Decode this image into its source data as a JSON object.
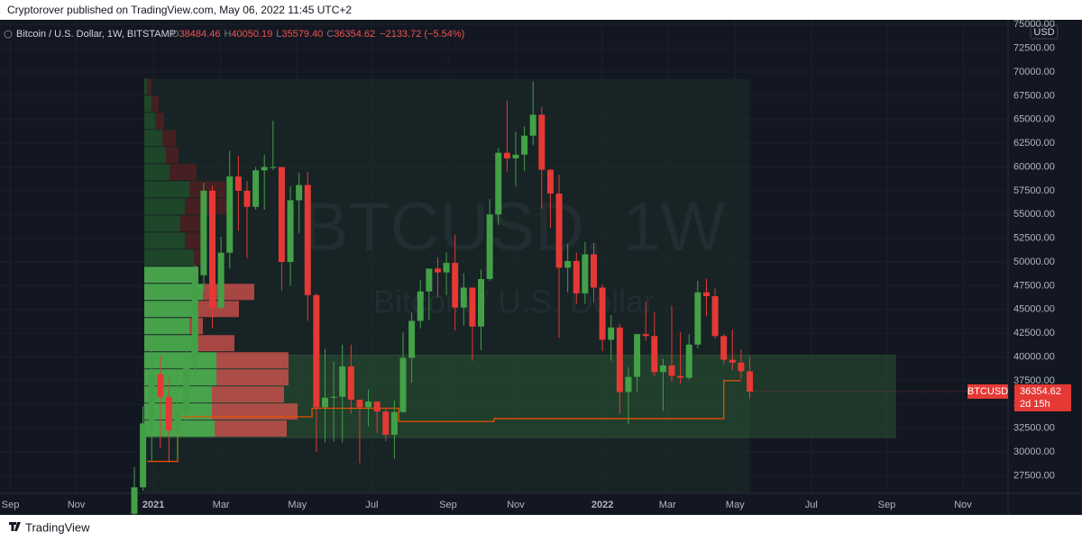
{
  "header": {
    "byline": "Cryptorover published on TradingView.com, May 06, 2022 11:45 UTC+2"
  },
  "footer": {
    "brand": "TradingView"
  },
  "chart_data": {
    "type": "candlestick",
    "title": "Bitcoin / U.S. Dollar, 1W, BITSTAMP",
    "ohlc_legend": [
      {
        "label": "O",
        "value": "38484.46"
      },
      {
        "label": "H",
        "value": "40050.19"
      },
      {
        "label": "L",
        "value": "35579.40"
      },
      {
        "label": "C",
        "value": "36354.62"
      }
    ],
    "change": "−2133.72 (−5.54%)",
    "watermark": [
      "BTCUSD, 1W",
      "Bitcoin / U.S. Dollar"
    ],
    "currency": "USD",
    "last_price": {
      "symbol": "BTCUSD",
      "value": 36354.62,
      "countdown": "2d 15h"
    },
    "up_color": "#43a047",
    "down_color": "#e53935",
    "x": [
      0,
      1,
      2,
      3,
      4,
      5,
      6,
      7,
      8,
      9,
      10,
      11,
      12,
      13,
      14,
      15,
      16,
      17,
      18,
      19,
      20,
      21,
      22,
      23,
      24,
      25,
      26,
      27,
      28,
      29,
      30,
      31,
      32,
      33,
      34,
      35,
      36,
      37,
      38,
      39,
      40,
      41,
      42,
      43,
      44,
      45,
      46,
      47,
      48,
      49,
      50,
      51,
      52,
      53,
      54,
      55,
      56,
      57,
      58,
      59,
      60,
      61,
      62,
      63,
      64,
      65,
      66,
      67,
      68,
      69,
      70,
      71
    ],
    "open": [
      23480,
      26270,
      33000,
      38180,
      35800,
      32260,
      34300,
      38900,
      48600,
      57500,
      45200,
      50970,
      59000,
      57500,
      55800,
      59650,
      60000,
      60000,
      50000,
      56500,
      58100,
      46500,
      34700,
      35700,
      35800,
      39000,
      35500,
      34700,
      35300,
      34250,
      31800,
      34200,
      39900,
      43800,
      46900,
      49300,
      48900,
      49900,
      45200,
      47300,
      43200,
      48200,
      55000,
      61500,
      60900,
      61300,
      63300,
      65500,
      59700,
      57200,
      49400,
      50100,
      46700,
      50800,
      47300,
      41800,
      43100,
      36300,
      37900,
      42400,
      42200,
      38400,
      39100,
      38000,
      37800,
      41300,
      46800,
      46400,
      42200,
      39700,
      39400,
      38484.46
    ],
    "high": [
      28400,
      34800,
      41950,
      40100,
      37850,
      38600,
      40950,
      49700,
      58350,
      58000,
      52650,
      61700,
      61200,
      58500,
      60000,
      61300,
      64850,
      60000,
      58000,
      59400,
      59500,
      46700,
      40850,
      39500,
      41300,
      41300,
      35500,
      36600,
      35300,
      34650,
      35400,
      42600,
      44700,
      48100,
      49100,
      50500,
      51000,
      52900,
      48800,
      47300,
      49200,
      56600,
      62000,
      67000,
      63700,
      64300,
      69000,
      66300,
      59800,
      59200,
      51900,
      51000,
      52100,
      52000,
      47600,
      44400,
      43500,
      38900,
      42200,
      45800,
      44700,
      39800,
      45400,
      42600,
      42400,
      48000,
      48200,
      47200,
      42400,
      42900,
      40800,
      40050.19
    ],
    "low": [
      22350,
      25900,
      29000,
      30400,
      28850,
      29200,
      32300,
      37400,
      47000,
      43000,
      44950,
      49300,
      53300,
      50400,
      55500,
      55500,
      59700,
      47000,
      47500,
      53000,
      43800,
      30000,
      31000,
      31100,
      31000,
      34000,
      28800,
      32700,
      32000,
      31100,
      29300,
      34100,
      37300,
      43000,
      43900,
      46300,
      46500,
      42800,
      43300,
      39600,
      40700,
      48000,
      53900,
      59500,
      58000,
      59600,
      62300,
      55600,
      53600,
      42000,
      46800,
      45600,
      45600,
      45700,
      40600,
      39600,
      34000,
      32900,
      36300,
      41700,
      38000,
      34300,
      37400,
      37200,
      37600,
      40900,
      44300,
      41900,
      39200,
      38600,
      37700,
      35579.4
    ],
    "close": [
      26270,
      33000,
      38180,
      35800,
      32260,
      34300,
      38900,
      48600,
      57500,
      45200,
      50970,
      59000,
      57500,
      55800,
      59650,
      60000,
      60000,
      50000,
      56500,
      58100,
      46500,
      34700,
      35700,
      35800,
      39000,
      35500,
      34700,
      35300,
      34250,
      31800,
      34200,
      39900,
      43800,
      46900,
      49300,
      48900,
      49900,
      45200,
      47300,
      43200,
      48200,
      55000,
      61500,
      60900,
      61300,
      63300,
      65500,
      59700,
      57200,
      49400,
      50100,
      46700,
      50800,
      47300,
      41800,
      43100,
      36300,
      37900,
      42400,
      42200,
      38400,
      39100,
      38000,
      37800,
      41300,
      46800,
      46400,
      42200,
      39700,
      39400,
      38500,
      36354.62
    ],
    "xlim": [
      -15.5,
      100.8
    ],
    "xticks": [
      {
        "value": -14.3,
        "label": "Sep"
      },
      {
        "value": -6.7,
        "label": "Nov"
      },
      {
        "value": 2.2,
        "label": "2021"
      },
      {
        "value": 10,
        "label": "Mar"
      },
      {
        "value": 18.8,
        "label": "May"
      },
      {
        "value": 27.4,
        "label": "Jul"
      },
      {
        "value": 36.2,
        "label": "Sep"
      },
      {
        "value": 44,
        "label": "Nov"
      },
      {
        "value": 54,
        "label": "2022"
      },
      {
        "value": 61.5,
        "label": "Mar"
      },
      {
        "value": 69.3,
        "label": "May"
      },
      {
        "value": 78.1,
        "label": "Jul"
      },
      {
        "value": 86.8,
        "label": "Sep"
      },
      {
        "value": 95.6,
        "label": "Nov"
      }
    ],
    "ylim": [
      25640,
      75500
    ],
    "yticks": [
      {
        "value": 27500,
        "label": "27500.00"
      },
      {
        "value": 30000,
        "label": "30000.00"
      },
      {
        "value": 32500,
        "label": "32500.00"
      },
      {
        "value": 35000,
        "label": "35000.00"
      },
      {
        "value": 37500,
        "label": "37500.00"
      },
      {
        "value": 40000,
        "label": "40000.00"
      },
      {
        "value": 42500,
        "label": "42500.00"
      },
      {
        "value": 45000,
        "label": "45000.00"
      },
      {
        "value": 47500,
        "label": "47500.00"
      },
      {
        "value": 50000,
        "label": "50000.00"
      },
      {
        "value": 52500,
        "label": "52500.00"
      },
      {
        "value": 55000,
        "label": "55000.00"
      },
      {
        "value": 57500,
        "label": "57500.00"
      },
      {
        "value": 60000,
        "label": "60000.00"
      },
      {
        "value": 62500,
        "label": "62500.00"
      },
      {
        "value": 65000,
        "label": "65000.00"
      },
      {
        "value": 67500,
        "label": "67500.00"
      },
      {
        "value": 70000,
        "label": "70000.00"
      },
      {
        "value": 72500,
        "label": "72500.00"
      },
      {
        "value": 75000,
        "label": "75000.00"
      }
    ],
    "grid": true,
    "volume_profile": {
      "bins": [
        31500,
        33300,
        35100,
        36900,
        38700,
        40500,
        42300,
        44100,
        45900,
        47700,
        49500,
        51300,
        53100,
        54900,
        56700,
        58500,
        60300,
        62100,
        63900,
        65700,
        67500,
        69300
      ],
      "up": [
        78,
        75,
        75,
        80,
        80,
        55,
        50,
        55,
        65,
        60,
        55,
        45,
        40,
        45,
        50,
        28,
        24,
        20,
        12,
        8,
        3
      ],
      "down": [
        80,
        95,
        80,
        80,
        80,
        45,
        15,
        50,
        57,
        0,
        10,
        20,
        25,
        50,
        40,
        30,
        14,
        15,
        10,
        8,
        5
      ],
      "value_area": [
        31500,
        49500
      ]
    },
    "zone": {
      "low": 31500,
      "high": 40200
    },
    "poc": {
      "x": [
        1.5,
        5,
        5,
        20.5,
        20.5,
        30.5,
        30.5,
        41.5,
        41.5,
        68,
        68,
        70
      ],
      "values": [
        29000,
        29000,
        33700,
        33700,
        34600,
        34600,
        33200,
        33200,
        33500,
        33500,
        37500,
        37500
      ]
    }
  }
}
